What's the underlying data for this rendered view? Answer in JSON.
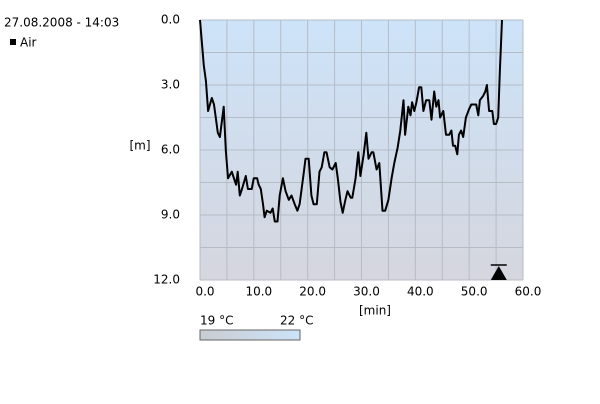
{
  "chart_data": {
    "type": "line",
    "title": "27.08.2008 - 14:03",
    "x_label": "[min]",
    "y_label": "[m]",
    "x": [
      0,
      0.7,
      1.1,
      1.5,
      2.2,
      2.6,
      3.3,
      3.7,
      4.4,
      4.8,
      5.2,
      5.9,
      6.3,
      6.7,
      7.0,
      7.4,
      7.8,
      8.5,
      8.9,
      9.6,
      10.0,
      10.6,
      10.9,
      11.3,
      11.7,
      12.0,
      12.4,
      13.1,
      13.5,
      13.9,
      14.4,
      14.8,
      15.4,
      15.9,
      16.5,
      17.0,
      17.6,
      18.1,
      18.5,
      19.3,
      19.6,
      20.2,
      20.7,
      21.1,
      21.7,
      22.2,
      22.6,
      23.1,
      23.5,
      24.1,
      24.6,
      25.2,
      25.6,
      26.1,
      26.5,
      27.0,
      27.4,
      28.0,
      28.3,
      28.9,
      29.4,
      29.8,
      30.4,
      30.9,
      31.3,
      31.9,
      32.2,
      32.8,
      33.3,
      33.9,
      34.4,
      35.0,
      35.6,
      36.1,
      36.7,
      37.2,
      37.8,
      38.1,
      38.7,
      39.1,
      39.4,
      39.8,
      40.2,
      40.7,
      41.1,
      41.5,
      42.0,
      42.6,
      43.0,
      43.5,
      43.9,
      44.3,
      44.6,
      45.2,
      45.7,
      46.3,
      46.7,
      47.0,
      47.4,
      47.8,
      48.1,
      48.5,
      48.9,
      49.4,
      50.0,
      50.4,
      50.9,
      51.3,
      51.7,
      52.0,
      52.6,
      53.0,
      53.3,
      53.7,
      54.3,
      54.6,
      55.0,
      55.4,
      55.7,
      56.1
    ],
    "series": [
      {
        "name": "Air",
        "color": "#000000",
        "values": [
          0,
          2.1,
          2.8,
          4.2,
          3.6,
          3.9,
          5.2,
          5.4,
          4.0,
          6.0,
          7.3,
          7.0,
          7.3,
          7.6,
          7.0,
          8.1,
          7.8,
          7.2,
          7.8,
          7.8,
          7.3,
          7.3,
          7.6,
          7.8,
          8.5,
          9.1,
          8.8,
          8.9,
          8.7,
          9.3,
          9.3,
          8.1,
          7.3,
          7.9,
          8.3,
          8.1,
          8.5,
          8.8,
          8.5,
          7.0,
          6.4,
          6.4,
          8.1,
          8.5,
          8.5,
          7.0,
          6.8,
          6.1,
          6.1,
          6.8,
          6.9,
          6.6,
          7.3,
          8.4,
          8.9,
          8.3,
          7.9,
          8.2,
          8.2,
          7.3,
          6.1,
          7.2,
          6.2,
          5.2,
          6.4,
          6.1,
          6.1,
          6.9,
          6.6,
          8.8,
          8.8,
          8.3,
          7.3,
          6.6,
          5.9,
          5.1,
          3.7,
          5.3,
          4.0,
          4.4,
          3.8,
          4.2,
          3.8,
          3.1,
          3.1,
          4.2,
          3.7,
          3.7,
          4.6,
          3.3,
          4.0,
          3.7,
          4.5,
          4.2,
          5.3,
          5.3,
          5.1,
          5.8,
          5.8,
          6.2,
          5.3,
          5.1,
          5.4,
          4.5,
          4.1,
          3.9,
          3.9,
          3.9,
          4.4,
          3.7,
          3.5,
          3.3,
          3.0,
          4.2,
          4.2,
          4.8,
          4.8,
          4.5,
          2.3,
          0
        ]
      }
    ],
    "xlim": [
      0,
      60
    ],
    "ylim": [
      0,
      12
    ],
    "y_reversed": true,
    "xticks": [
      {
        "value": 0,
        "label": "0.0"
      },
      {
        "value": 10,
        "label": "10.0"
      },
      {
        "value": 20,
        "label": "20.0"
      },
      {
        "value": 30,
        "label": "30.0"
      },
      {
        "value": 40,
        "label": "40.0"
      },
      {
        "value": 50,
        "label": "50.0"
      },
      {
        "value": 60,
        "label": "60.0"
      }
    ],
    "yticks": [
      {
        "value": 0,
        "label": "0.0"
      },
      {
        "value": 3,
        "label": "3.0"
      },
      {
        "value": 6,
        "label": "6.0"
      },
      {
        "value": 9,
        "label": "9.0"
      },
      {
        "value": 12,
        "label": "12.0"
      }
    ],
    "x_minor_ticks": [
      5,
      15,
      25,
      35,
      45,
      55
    ],
    "y_minor_ticks": [
      1.5,
      4.5,
      7.5,
      10.5
    ],
    "grid": true,
    "events": [
      55.5
    ],
    "color_scale": {
      "labels": [
        "19 °C",
        "22 °C"
      ]
    }
  }
}
